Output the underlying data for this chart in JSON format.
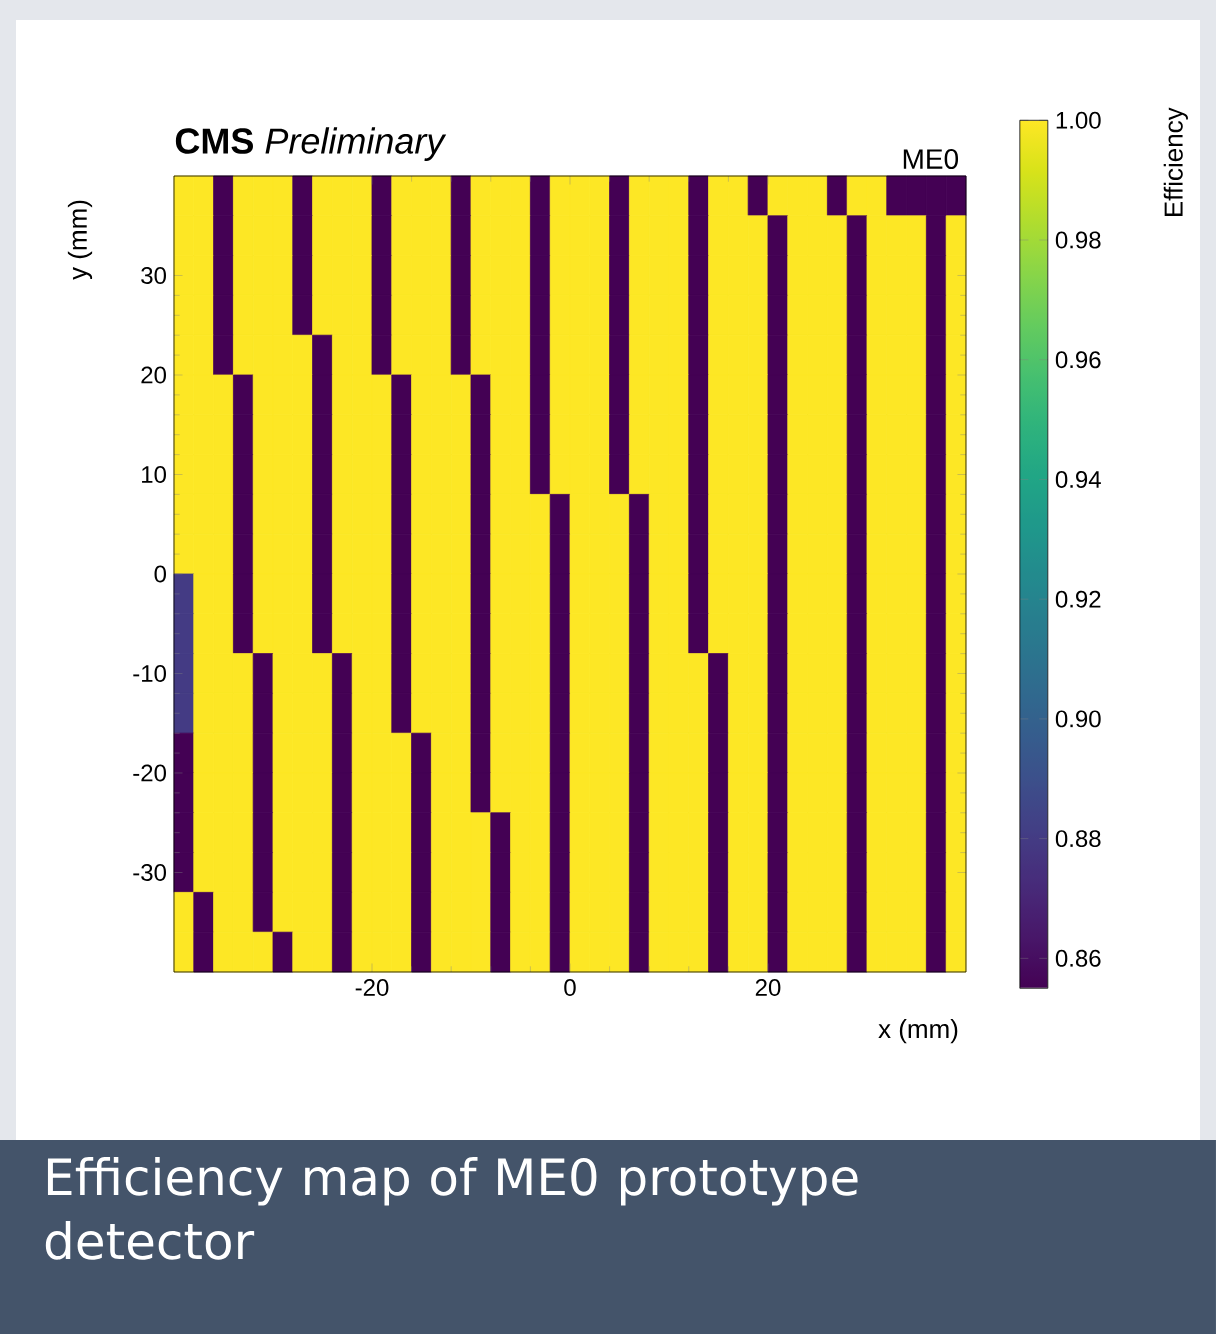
{
  "chart_data": {
    "type": "heatmap",
    "title": "**CMS** *Preliminary*",
    "xlabel": "x (mm)",
    "ylabel": "y (mm)",
    "clabel": "Efficiency",
    "annotations": [
      "ME0",
      "Efficiency map of ME0 prototype detector"
    ],
    "xlim": [
      -40,
      40
    ],
    "ylim": [
      -40,
      40
    ],
    "xticks": [
      -20,
      0,
      20
    ],
    "yticks": [
      -30,
      -20,
      -10,
      0,
      10,
      20,
      30
    ],
    "clim": [
      0.855,
      1.0
    ],
    "cticks": [
      {
        "value": 0.86,
        "label": "0.86"
      },
      {
        "value": 0.88,
        "label": "0.88"
      },
      {
        "value": 0.9,
        "label": "0.90"
      },
      {
        "value": 0.92,
        "label": "0.92"
      },
      {
        "value": 0.94,
        "label": "0.94"
      },
      {
        "value": 0.96,
        "label": "0.96"
      },
      {
        "value": 0.98,
        "label": "0.98"
      },
      {
        "value": 1.0,
        "label": "1.00"
      }
    ],
    "cells": [
      [
        1,
        1,
        0.855,
        1,
        1,
        1,
        0.855,
        1,
        1,
        1,
        0.855,
        1,
        1,
        1,
        0.855,
        1,
        1,
        1,
        0.855,
        1,
        1,
        1,
        0.855,
        1,
        1,
        1,
        0.855,
        1,
        1,
        0.855,
        1,
        1,
        1,
        0.855,
        1,
        1,
        0.855,
        0.855,
        0.855,
        0.855
      ],
      [
        1,
        1,
        0.855,
        1,
        1,
        1,
        0.855,
        1,
        1,
        1,
        0.855,
        1,
        1,
        1,
        0.855,
        1,
        1,
        1,
        0.855,
        1,
        1,
        1,
        0.855,
        1,
        1,
        1,
        0.855,
        1,
        1,
        1,
        0.855,
        1,
        1,
        1,
        0.855,
        1,
        1,
        1,
        0.855,
        1
      ],
      [
        1,
        1,
        0.855,
        1,
        1,
        1,
        0.855,
        1,
        1,
        1,
        0.855,
        1,
        1,
        1,
        0.855,
        1,
        1,
        1,
        0.855,
        1,
        1,
        1,
        0.855,
        1,
        1,
        1,
        0.855,
        1,
        1,
        1,
        0.855,
        1,
        1,
        1,
        0.855,
        1,
        1,
        1,
        0.855,
        1
      ],
      [
        1,
        1,
        0.855,
        1,
        1,
        1,
        0.855,
        1,
        1,
        1,
        0.855,
        1,
        1,
        1,
        0.855,
        1,
        1,
        1,
        0.855,
        1,
        1,
        1,
        0.855,
        1,
        1,
        1,
        0.855,
        1,
        1,
        1,
        0.855,
        1,
        1,
        1,
        0.855,
        1,
        1,
        1,
        0.855,
        1
      ],
      [
        1,
        1,
        0.855,
        1,
        1,
        1,
        1,
        0.855,
        1,
        1,
        0.855,
        1,
        1,
        1,
        0.855,
        1,
        1,
        1,
        0.855,
        1,
        1,
        1,
        0.855,
        1,
        1,
        1,
        0.855,
        1,
        1,
        1,
        0.855,
        1,
        1,
        1,
        0.855,
        1,
        1,
        1,
        0.855,
        1
      ],
      [
        1,
        1,
        1,
        0.855,
        1,
        1,
        1,
        0.855,
        1,
        1,
        1,
        0.855,
        1,
        1,
        1,
        0.855,
        1,
        1,
        0.855,
        1,
        1,
        1,
        0.855,
        1,
        1,
        1,
        0.855,
        1,
        1,
        1,
        0.855,
        1,
        1,
        1,
        0.855,
        1,
        1,
        1,
        0.855,
        1
      ],
      [
        1,
        1,
        1,
        0.855,
        1,
        1,
        1,
        0.855,
        1,
        1,
        1,
        0.855,
        1,
        1,
        1,
        0.855,
        1,
        1,
        0.855,
        1,
        1,
        1,
        0.855,
        1,
        1,
        1,
        0.855,
        1,
        1,
        1,
        0.855,
        1,
        1,
        1,
        0.855,
        1,
        1,
        1,
        0.855,
        1
      ],
      [
        1,
        1,
        1,
        0.855,
        1,
        1,
        1,
        0.855,
        1,
        1,
        1,
        0.855,
        1,
        1,
        1,
        0.855,
        1,
        1,
        0.855,
        1,
        1,
        1,
        0.855,
        1,
        1,
        1,
        0.855,
        1,
        1,
        1,
        0.855,
        1,
        1,
        1,
        0.855,
        1,
        1,
        1,
        0.855,
        1
      ],
      [
        1,
        1,
        1,
        0.855,
        1,
        1,
        1,
        0.855,
        1,
        1,
        1,
        0.855,
        1,
        1,
        1,
        0.855,
        1,
        1,
        1,
        0.855,
        1,
        1,
        1,
        0.855,
        1,
        1,
        0.855,
        1,
        1,
        1,
        0.855,
        1,
        1,
        1,
        0.855,
        1,
        1,
        1,
        0.855,
        1
      ],
      [
        1,
        1,
        1,
        0.855,
        1,
        1,
        1,
        0.855,
        1,
        1,
        1,
        0.855,
        1,
        1,
        1,
        0.855,
        1,
        1,
        1,
        0.855,
        1,
        1,
        1,
        0.855,
        1,
        1,
        0.855,
        1,
        1,
        1,
        0.855,
        1,
        1,
        1,
        0.855,
        1,
        1,
        1,
        0.855,
        1
      ],
      [
        0.88,
        1,
        1,
        0.855,
        1,
        1,
        1,
        0.855,
        1,
        1,
        1,
        0.855,
        1,
        1,
        1,
        0.855,
        1,
        1,
        1,
        0.855,
        1,
        1,
        1,
        0.855,
        1,
        1,
        0.855,
        1,
        1,
        1,
        0.855,
        1,
        1,
        1,
        0.855,
        1,
        1,
        1,
        0.855,
        1
      ],
      [
        0.88,
        1,
        1,
        0.855,
        1,
        1,
        1,
        0.855,
        1,
        1,
        1,
        0.855,
        1,
        1,
        1,
        0.855,
        1,
        1,
        1,
        0.855,
        1,
        1,
        1,
        0.855,
        1,
        1,
        0.855,
        1,
        1,
        1,
        0.855,
        1,
        1,
        1,
        0.855,
        1,
        1,
        1,
        0.855,
        1
      ],
      [
        0.88,
        1,
        1,
        1,
        0.855,
        1,
        1,
        1,
        0.855,
        1,
        1,
        0.855,
        1,
        1,
        1,
        0.855,
        1,
        1,
        1,
        0.855,
        1,
        1,
        1,
        0.855,
        1,
        1,
        1,
        0.855,
        1,
        1,
        0.855,
        1,
        1,
        1,
        0.855,
        1,
        1,
        1,
        0.855,
        1
      ],
      [
        0.88,
        1,
        1,
        1,
        0.855,
        1,
        1,
        1,
        0.855,
        1,
        1,
        0.855,
        1,
        1,
        1,
        0.855,
        1,
        1,
        1,
        0.855,
        1,
        1,
        1,
        0.855,
        1,
        1,
        1,
        0.855,
        1,
        1,
        0.855,
        1,
        1,
        1,
        0.855,
        1,
        1,
        1,
        0.855,
        1
      ],
      [
        0.855,
        1,
        1,
        1,
        0.855,
        1,
        1,
        1,
        0.855,
        1,
        1,
        1,
        0.855,
        1,
        1,
        0.855,
        1,
        1,
        1,
        0.855,
        1,
        1,
        1,
        0.855,
        1,
        1,
        1,
        0.855,
        1,
        1,
        0.855,
        1,
        1,
        1,
        0.855,
        1,
        1,
        1,
        0.855,
        1
      ],
      [
        0.855,
        1,
        1,
        1,
        0.855,
        1,
        1,
        1,
        0.855,
        1,
        1,
        1,
        0.855,
        1,
        1,
        0.855,
        1,
        1,
        1,
        0.855,
        1,
        1,
        1,
        0.855,
        1,
        1,
        1,
        0.855,
        1,
        1,
        0.855,
        1,
        1,
        1,
        0.855,
        1,
        1,
        1,
        0.855,
        1
      ],
      [
        0.855,
        1,
        1,
        1,
        0.855,
        1,
        1,
        1,
        0.855,
        1,
        1,
        1,
        0.855,
        1,
        1,
        1,
        0.855,
        1,
        1,
        0.855,
        1,
        1,
        1,
        0.855,
        1,
        1,
        1,
        0.855,
        1,
        1,
        0.855,
        1,
        1,
        1,
        0.855,
        1,
        1,
        1,
        0.855,
        1
      ],
      [
        0.855,
        1,
        1,
        1,
        0.855,
        1,
        1,
        1,
        0.855,
        1,
        1,
        1,
        0.855,
        1,
        1,
        1,
        0.855,
        1,
        1,
        0.855,
        1,
        1,
        1,
        0.855,
        1,
        1,
        1,
        0.855,
        1,
        1,
        0.855,
        1,
        1,
        1,
        0.855,
        1,
        1,
        1,
        0.855,
        1
      ],
      [
        1,
        0.855,
        1,
        1,
        0.855,
        1,
        1,
        1,
        0.855,
        1,
        1,
        1,
        0.855,
        1,
        1,
        1,
        0.855,
        1,
        1,
        0.855,
        1,
        1,
        1,
        0.855,
        1,
        1,
        1,
        0.855,
        1,
        1,
        0.855,
        1,
        1,
        1,
        0.855,
        1,
        1,
        1,
        0.855,
        1
      ],
      [
        1,
        0.855,
        1,
        1,
        1,
        0.855,
        1,
        1,
        0.855,
        1,
        1,
        1,
        0.855,
        1,
        1,
        1,
        0.855,
        1,
        1,
        0.855,
        1,
        1,
        1,
        0.855,
        1,
        1,
        1,
        0.855,
        1,
        1,
        0.855,
        1,
        1,
        1,
        0.855,
        1,
        1,
        1,
        0.855,
        1
      ]
    ]
  }
}
